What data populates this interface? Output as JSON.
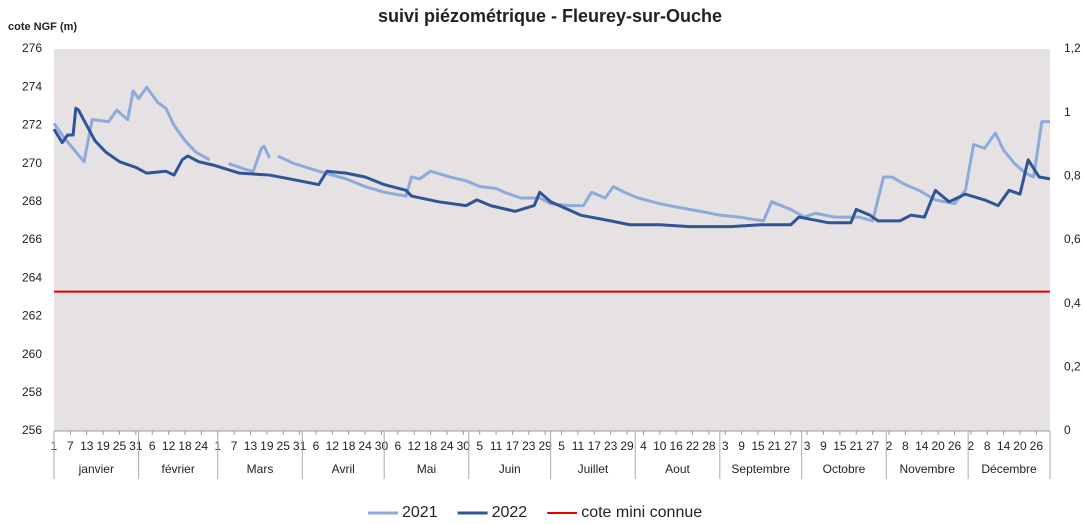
{
  "chart_data": {
    "type": "line",
    "title": "suivi piézométrique - Fleurey-sur-Ouche",
    "y_label": "cote NGF (m)",
    "xlim": [
      1,
      366
    ],
    "ylim": [
      256,
      276
    ],
    "yticks": [
      256,
      258,
      260,
      262,
      264,
      266,
      268,
      270,
      272,
      274,
      276
    ],
    "y2lim": [
      0,
      1.2
    ],
    "y2ticks": [
      0,
      {
        "value": 0.2,
        "label": "0,2"
      },
      {
        "value": 0.4,
        "label": "0,4"
      },
      {
        "value": 0.6,
        "label": "0,6"
      },
      {
        "value": 0.8,
        "label": "0,8"
      },
      1,
      {
        "value": 1.2,
        "label": "1,2"
      }
    ],
    "xticks": [
      {
        "value": 1,
        "label": "1"
      },
      {
        "value": 7,
        "label": "7"
      },
      {
        "value": 13,
        "label": "13"
      },
      {
        "value": 19,
        "label": "19"
      },
      {
        "value": 25,
        "label": "25"
      },
      {
        "value": 31,
        "label": "31"
      },
      {
        "value": 37,
        "label": "6"
      },
      {
        "value": 43,
        "label": "12"
      },
      {
        "value": 49,
        "label": "18"
      },
      {
        "value": 55,
        "label": "24"
      },
      {
        "value": 61,
        "label": "1"
      },
      {
        "value": 67,
        "label": "7"
      },
      {
        "value": 73,
        "label": "13"
      },
      {
        "value": 79,
        "label": "19"
      },
      {
        "value": 85,
        "label": "25"
      },
      {
        "value": 91,
        "label": "31"
      },
      {
        "value": 97,
        "label": "6"
      },
      {
        "value": 103,
        "label": "12"
      },
      {
        "value": 109,
        "label": "18"
      },
      {
        "value": 115,
        "label": "24"
      },
      {
        "value": 121,
        "label": "30"
      },
      {
        "value": 127,
        "label": "6"
      },
      {
        "value": 133,
        "label": "12"
      },
      {
        "value": 139,
        "label": "18"
      },
      {
        "value": 145,
        "label": "24"
      },
      {
        "value": 151,
        "label": "30"
      },
      {
        "value": 157,
        "label": "5"
      },
      {
        "value": 163,
        "label": "11"
      },
      {
        "value": 169,
        "label": "17"
      },
      {
        "value": 175,
        "label": "23"
      },
      {
        "value": 181,
        "label": "29"
      },
      {
        "value": 187,
        "label": "5"
      },
      {
        "value": 193,
        "label": "11"
      },
      {
        "value": 199,
        "label": "17"
      },
      {
        "value": 205,
        "label": "23"
      },
      {
        "value": 211,
        "label": "29"
      },
      {
        "value": 217,
        "label": "4"
      },
      {
        "value": 223,
        "label": "10"
      },
      {
        "value": 229,
        "label": "16"
      },
      {
        "value": 235,
        "label": "22"
      },
      {
        "value": 241,
        "label": "28"
      },
      {
        "value": 247,
        "label": "3"
      },
      {
        "value": 253,
        "label": "9"
      },
      {
        "value": 259,
        "label": "15"
      },
      {
        "value": 265,
        "label": "21"
      },
      {
        "value": 271,
        "label": "27"
      },
      {
        "value": 277,
        "label": "3"
      },
      {
        "value": 283,
        "label": "9"
      },
      {
        "value": 289,
        "label": "15"
      },
      {
        "value": 295,
        "label": "21"
      },
      {
        "value": 301,
        "label": "27"
      },
      {
        "value": 307,
        "label": "2"
      },
      {
        "value": 313,
        "label": "8"
      },
      {
        "value": 319,
        "label": "14"
      },
      {
        "value": 325,
        "label": "20"
      },
      {
        "value": 331,
        "label": "26"
      },
      {
        "value": 337,
        "label": "2"
      },
      {
        "value": 343,
        "label": "8"
      },
      {
        "value": 349,
        "label": "14"
      },
      {
        "value": 355,
        "label": "20"
      },
      {
        "value": 361,
        "label": "26"
      }
    ],
    "months": [
      "janvier",
      "février",
      "Mars",
      "Avril",
      "Mai",
      "Juin",
      "Juillet",
      "Aout",
      "Septembre",
      "Octobre",
      "Novembre",
      "Décembre"
    ],
    "series": [
      {
        "name": "2021",
        "color": "#8eaadb",
        "x": [
          1,
          5,
          12,
          15,
          21,
          24,
          28,
          30,
          32,
          35,
          39,
          42,
          45,
          49,
          53,
          58,
          60,
          65,
          71,
          74,
          77,
          78,
          80,
          81,
          83,
          89,
          98,
          108,
          115,
          122,
          130,
          132,
          135,
          139,
          146,
          152,
          157,
          163,
          166,
          172,
          179,
          183,
          190,
          195,
          198,
          203,
          206,
          210,
          215,
          223,
          230,
          238,
          245,
          252,
          261,
          264,
          271,
          276,
          280,
          287,
          296,
          301,
          305,
          308,
          313,
          318,
          324,
          331,
          335,
          338,
          342,
          346,
          349,
          353,
          357,
          360,
          363,
          366
        ],
        "values": [
          272.1,
          271.3,
          270.1,
          272.3,
          272.2,
          272.8,
          272.3,
          273.8,
          273.4,
          274.0,
          273.2,
          272.9,
          272.0,
          271.2,
          270.6,
          270.2,
          null,
          270.0,
          269.7,
          269.6,
          270.8,
          270.9,
          270.3,
          null,
          270.4,
          270.0,
          269.6,
          269.2,
          268.8,
          268.5,
          268.3,
          269.3,
          269.2,
          269.6,
          269.3,
          269.1,
          268.8,
          268.7,
          268.5,
          268.2,
          268.2,
          267.9,
          267.8,
          267.8,
          268.5,
          268.2,
          268.8,
          268.5,
          268.2,
          267.9,
          267.7,
          267.5,
          267.3,
          267.2,
          267.0,
          268.0,
          267.6,
          267.2,
          267.4,
          267.2,
          267.2,
          267.0,
          269.3,
          269.3,
          268.9,
          268.6,
          268.1,
          267.9,
          268.6,
          271.0,
          270.8,
          271.6,
          270.7,
          270.0,
          269.5,
          269.3,
          272.2,
          272.2
        ]
      },
      {
        "name": "2022",
        "color": "#2f5597",
        "x": [
          1,
          4,
          6,
          8,
          9,
          10,
          13,
          16,
          20,
          25,
          31,
          35,
          42,
          45,
          48,
          50,
          54,
          60,
          69,
          80,
          91,
          98,
          101,
          108,
          115,
          122,
          130,
          132,
          142,
          152,
          156,
          161,
          170,
          177,
          179,
          183,
          194,
          205,
          212,
          223,
          234,
          249,
          260,
          271,
          274,
          285,
          293,
          295,
          300,
          303,
          311,
          315,
          320,
          324,
          329,
          335,
          342,
          347,
          351,
          355,
          358,
          362,
          366
        ],
        "values": [
          271.8,
          271.1,
          271.5,
          271.5,
          272.9,
          272.8,
          272.0,
          271.2,
          270.6,
          270.1,
          269.8,
          269.5,
          269.6,
          269.4,
          270.2,
          270.4,
          270.1,
          269.9,
          269.5,
          269.4,
          269.1,
          268.9,
          269.6,
          269.5,
          269.3,
          268.9,
          268.6,
          268.3,
          268.0,
          267.8,
          268.1,
          267.8,
          267.5,
          267.8,
          268.5,
          268.0,
          267.3,
          267.0,
          266.8,
          266.8,
          266.7,
          266.7,
          266.8,
          266.8,
          267.2,
          266.9,
          266.9,
          267.6,
          267.3,
          267.0,
          267.0,
          267.3,
          267.2,
          268.6,
          268.0,
          268.4,
          268.1,
          267.8,
          268.6,
          268.4,
          270.2,
          269.3,
          269.2
        ]
      }
    ],
    "reference_line": {
      "name": "cote mini connue",
      "color": "#e00000",
      "value": 263.3
    },
    "plot_background": "#e6e2e4"
  }
}
